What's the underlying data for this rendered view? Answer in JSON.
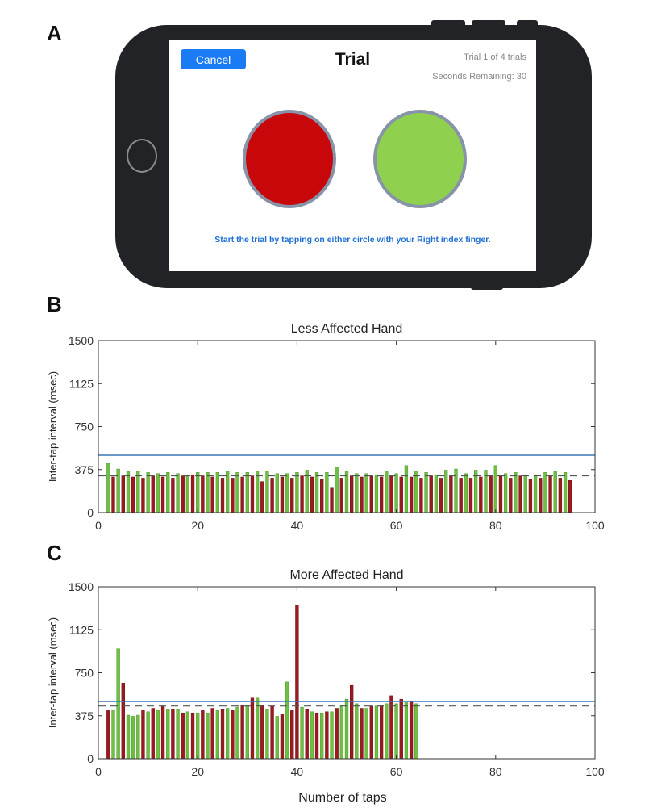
{
  "panel_labels": {
    "a": "A",
    "b": "B",
    "c": "C"
  },
  "phone_screen": {
    "cancel_label": "Cancel",
    "title": "Trial",
    "trial_count": "Trial 1 of 4 trials",
    "seconds_remaining": "Seconds Remaining: 30",
    "instruction": "Start the trial by tapping on either circle with your Right index finger.",
    "left_circle_color": "#c8070b",
    "right_circle_color": "#8fd14f",
    "cancel_color": "#1b7bf5"
  },
  "colors": {
    "green_bar": "#6fbf44",
    "red_bar": "#9b1a20",
    "threshold_line": "#3a78b5",
    "mean_line": "#555555"
  },
  "x_axis_title": "Number of taps",
  "chart_data": [
    {
      "type": "bar",
      "title": "Less Affected Hand",
      "ylabel": "Inter-tap interval (msec)",
      "xlabel": "",
      "xlim": [
        0,
        100
      ],
      "ylim": [
        0,
        1500
      ],
      "xticks": [
        0,
        20,
        40,
        60,
        80,
        100
      ],
      "yticks": [
        0,
        375,
        750,
        1125,
        1500
      ],
      "grid": false,
      "x": [
        2,
        3,
        4,
        5,
        6,
        7,
        8,
        9,
        10,
        11,
        12,
        13,
        14,
        15,
        16,
        17,
        18,
        19,
        20,
        21,
        22,
        23,
        24,
        25,
        26,
        27,
        28,
        29,
        30,
        31,
        32,
        33,
        34,
        35,
        36,
        37,
        38,
        39,
        40,
        41,
        42,
        43,
        44,
        45,
        46,
        47,
        48,
        49,
        50,
        51,
        52,
        53,
        54,
        55,
        56,
        57,
        58,
        59,
        60,
        61,
        62,
        63,
        64,
        65,
        66,
        67,
        68,
        69,
        70,
        71,
        72,
        73,
        74,
        75,
        76,
        77,
        78,
        79,
        80,
        81,
        82,
        83,
        84,
        85,
        86,
        87,
        88,
        89,
        90,
        91,
        92,
        93,
        94,
        95
      ],
      "values": [
        430,
        310,
        380,
        320,
        360,
        310,
        360,
        300,
        350,
        320,
        340,
        310,
        350,
        300,
        340,
        320,
        320,
        330,
        350,
        320,
        350,
        310,
        350,
        300,
        360,
        300,
        350,
        310,
        350,
        320,
        360,
        270,
        360,
        300,
        340,
        310,
        340,
        300,
        350,
        320,
        370,
        310,
        350,
        290,
        350,
        220,
        400,
        300,
        360,
        320,
        340,
        310,
        340,
        320,
        330,
        310,
        360,
        320,
        340,
        310,
        410,
        310,
        360,
        300,
        350,
        320,
        330,
        300,
        370,
        320,
        380,
        300,
        340,
        300,
        370,
        310,
        370,
        320,
        410,
        320,
        340,
        300,
        350,
        320,
        330,
        290,
        330,
        300,
        350,
        320,
        360,
        300,
        350,
        280
      ],
      "bar_colors": [
        "g",
        "r",
        "g",
        "r",
        "g",
        "r",
        "g",
        "r",
        "g",
        "r",
        "g",
        "r",
        "g",
        "r",
        "g",
        "r",
        "g",
        "r",
        "g",
        "r",
        "g",
        "r",
        "g",
        "r",
        "g",
        "r",
        "g",
        "r",
        "g",
        "r",
        "g",
        "r",
        "g",
        "r",
        "g",
        "r",
        "g",
        "r",
        "g",
        "r",
        "g",
        "r",
        "g",
        "r",
        "g",
        "r",
        "g",
        "r",
        "g",
        "r",
        "g",
        "r",
        "g",
        "r",
        "g",
        "r",
        "g",
        "r",
        "g",
        "r",
        "g",
        "r",
        "g",
        "r",
        "g",
        "r",
        "g",
        "r",
        "g",
        "r",
        "g",
        "r",
        "g",
        "r",
        "g",
        "r",
        "g",
        "r",
        "g",
        "r",
        "g",
        "r",
        "g",
        "r",
        "g",
        "r",
        "g",
        "r",
        "g",
        "r",
        "g",
        "r",
        "g",
        "r"
      ],
      "threshold": 500,
      "mean": 320
    },
    {
      "type": "bar",
      "title": "More Affected Hand",
      "ylabel": "Inter-tap interval (msec)",
      "xlabel": "Number of taps",
      "xlim": [
        0,
        100
      ],
      "ylim": [
        0,
        1500
      ],
      "xticks": [
        0,
        20,
        40,
        60,
        80,
        100
      ],
      "yticks": [
        0,
        375,
        750,
        1125,
        1500
      ],
      "grid": false,
      "x": [
        2,
        3,
        4,
        5,
        6,
        7,
        8,
        9,
        10,
        11,
        12,
        13,
        14,
        15,
        16,
        17,
        18,
        19,
        20,
        21,
        22,
        23,
        24,
        25,
        26,
        27,
        28,
        29,
        30,
        31,
        32,
        33,
        34,
        35,
        36,
        37,
        38,
        39,
        40,
        41,
        42,
        43,
        44,
        45,
        46,
        47,
        48,
        49,
        50,
        51,
        52,
        53,
        54,
        55,
        56,
        57,
        58,
        59,
        60,
        61,
        62,
        63,
        64
      ],
      "values": [
        420,
        420,
        960,
        660,
        380,
        370,
        380,
        420,
        410,
        440,
        420,
        460,
        430,
        430,
        430,
        400,
        410,
        400,
        400,
        420,
        400,
        440,
        420,
        430,
        440,
        420,
        450,
        470,
        470,
        530,
        530,
        470,
        430,
        460,
        370,
        390,
        670,
        420,
        1340,
        450,
        430,
        410,
        400,
        400,
        410,
        410,
        440,
        470,
        520,
        640,
        480,
        440,
        440,
        460,
        460,
        470,
        480,
        550,
        480,
        520,
        490,
        500,
        480
      ],
      "bar_colors": [
        "r",
        "g",
        "g",
        "r",
        "g",
        "g",
        "g",
        "r",
        "g",
        "r",
        "g",
        "r",
        "g",
        "r",
        "g",
        "r",
        "g",
        "r",
        "g",
        "r",
        "g",
        "r",
        "g",
        "r",
        "g",
        "r",
        "g",
        "r",
        "g",
        "r",
        "g",
        "r",
        "g",
        "r",
        "g",
        "r",
        "g",
        "r",
        "r",
        "g",
        "r",
        "g",
        "r",
        "g",
        "r",
        "g",
        "r",
        "g",
        "g",
        "r",
        "g",
        "r",
        "g",
        "r",
        "g",
        "r",
        "g",
        "r",
        "g",
        "r",
        "g",
        "r",
        "g"
      ],
      "threshold": 500,
      "mean": 460
    }
  ]
}
